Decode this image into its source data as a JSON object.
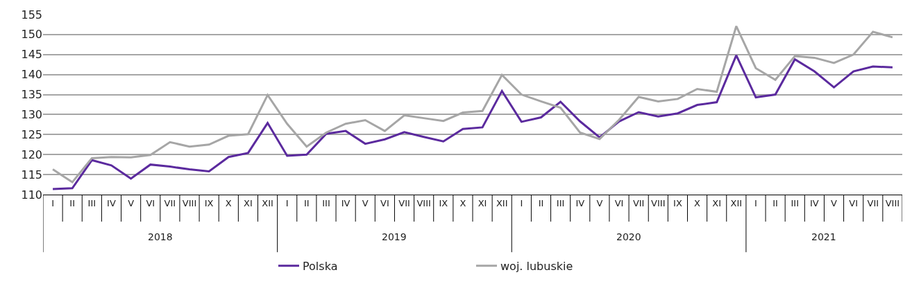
{
  "chart_data": {
    "type": "line",
    "categories": [
      "I",
      "II",
      "III",
      "IV",
      "V",
      "VI",
      "VII",
      "VIII",
      "IX",
      "X",
      "XI",
      "XII",
      "I",
      "II",
      "III",
      "IV",
      "V",
      "VI",
      "VII",
      "VIII",
      "IX",
      "X",
      "XI",
      "XII",
      "I",
      "II",
      "III",
      "IV",
      "V",
      "VI",
      "VII",
      "VIII",
      "IX",
      "X",
      "XI",
      "XII",
      "I",
      "II",
      "III",
      "IV",
      "V",
      "VI",
      "VII",
      "VIII"
    ],
    "annotations": [
      "2018",
      "2019",
      "2020",
      "2021"
    ],
    "series": [
      {
        "name": "Polska",
        "color": "#5b2a9e",
        "values": [
          111.4,
          111.6,
          118.6,
          117.3,
          114.0,
          117.5,
          117.0,
          116.3,
          115.8,
          119.4,
          120.4,
          127.9,
          119.7,
          120.0,
          125.2,
          125.9,
          122.7,
          123.8,
          125.6,
          124.4,
          123.3,
          126.4,
          126.8,
          135.9,
          128.2,
          129.3,
          133.2,
          128.3,
          124.3,
          128.3,
          130.6,
          129.5,
          130.3,
          132.4,
          133.1,
          144.8,
          134.3,
          135.0,
          143.8,
          140.8,
          136.8,
          140.8,
          142.0,
          141.8
        ]
      },
      {
        "name": "woj. lubuskie",
        "color": "#a6a6a6",
        "values": [
          116.3,
          113.1,
          119.1,
          119.4,
          119.3,
          119.9,
          123.1,
          122.0,
          122.5,
          124.7,
          125.1,
          134.9,
          127.7,
          122.0,
          125.5,
          127.7,
          128.6,
          125.9,
          129.8,
          129.1,
          128.4,
          130.5,
          130.9,
          139.9,
          135.0,
          133.3,
          131.7,
          125.5,
          123.9,
          128.7,
          134.4,
          133.3,
          133.9,
          136.4,
          135.7,
          152.1,
          141.6,
          138.7,
          144.6,
          144.2,
          142.9,
          145.0,
          150.7,
          149.3
        ]
      }
    ],
    "ylim": [
      110,
      155
    ],
    "yticks": [
      110,
      115,
      120,
      125,
      130,
      135,
      140,
      145,
      150,
      155
    ],
    "grid": "y",
    "legend": "bottom",
    "marker": "none",
    "line_style": "solid"
  }
}
